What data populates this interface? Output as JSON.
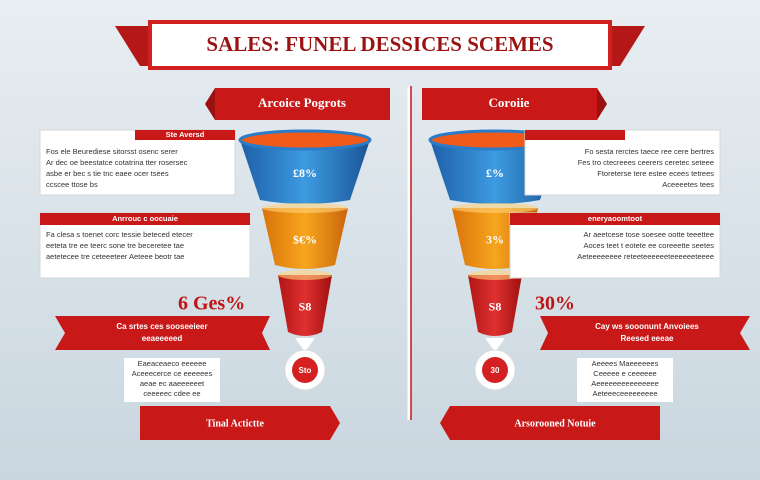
{
  "title": "SALES: FUNEL DESSICES SCEMES",
  "left": {
    "header": "Arcoice Pogrots",
    "funnel": [
      "£8%",
      "$€%",
      "S8",
      "Sto"
    ],
    "box1": {
      "label": "Ste Aversd",
      "lines": [
        "Fos ele Beurediese sitorsst osenc serer",
        "Ar dec oe beestatce cotatrina tter rosersec",
        "asbe er bec s tie tnc eaee ocer tsees",
        "ccscee ttose bs"
      ]
    },
    "box2": {
      "label": "Anrrouc c oocuaie",
      "lines": [
        "Fa clesa s toenet corc tessie beteced etecer",
        "eeteta tre ee teerc sone tre beceretee tae",
        "aetetecee tre ceteeeteer Aeteee beotr tae"
      ]
    },
    "stat": "6 Ges%",
    "banner": [
      "Ca srtes ces sooseeieer",
      "eeaeeeeed"
    ],
    "lines": [
      "Eaeaceaeco eeeeee",
      "Aceeecerce ce eeeeees",
      "aeae ec aaeeeeeet",
      "ceeeeec cdee ee"
    ],
    "footer": "Tinal Actictte"
  },
  "right": {
    "header": "Coroiie",
    "funnel": [
      "£%",
      "3%",
      "S8",
      "30"
    ],
    "box1": {
      "label": "",
      "lines": [
        "Fo sesta rerctes taece ree cere bertres",
        "Fes tro ctecreees ceerers ceretec seteee",
        "Ftoreterse tere estee ecees tetrees",
        "Aceeeetes tees"
      ]
    },
    "box2": {
      "label": "eneryaoomtoot",
      "lines": [
        "Ar aeetcese tose soesee ootte teeettee",
        "Aoces teet t eotete ee coreeette seetes",
        "Aeteeeeeeee reteeteeeeeeteeeeeeteeee"
      ]
    },
    "stat": "30%",
    "banner": [
      "Cay ws sooonunt Anvoiees",
      "Reesed eeeae"
    ],
    "lines": [
      "Aeeees Maeeeeees",
      "Ceeeee e ceeeeee",
      "Aeeeeeeeeeeeeeee",
      "Aeteeeceeeeeeeee"
    ],
    "footer": "Arsorooned Notuie"
  }
}
